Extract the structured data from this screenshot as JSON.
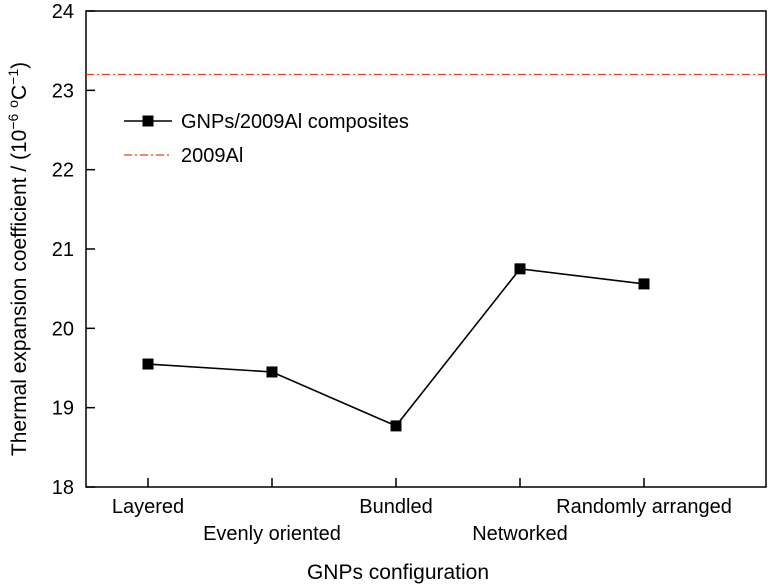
{
  "chart_data": {
    "type": "line",
    "title": "",
    "xlabel": "GNPs configuration",
    "ylabel": {
      "main": "Thermal expansion coefficient / (10",
      "exponent": "−6",
      "unit_open": " ",
      "unit_degree": "o",
      "unit_c": "C",
      "unit_exponent": "−1",
      "close": ")"
    },
    "categories": [
      "Layered",
      "Evenly oriented",
      "Bundled",
      "Networked",
      "Randomly arranged"
    ],
    "ylim": [
      18,
      24
    ],
    "yticks": [
      "18",
      "19",
      "20",
      "21",
      "22",
      "23",
      "24"
    ],
    "grid": false,
    "legend_position": "top-left",
    "series": [
      {
        "name": "GNPs/2009Al composites",
        "values": [
          19.55,
          19.45,
          18.77,
          20.75,
          20.56
        ],
        "color": "#000000",
        "marker": "square"
      }
    ],
    "reference_lines": [
      {
        "name": "2009Al",
        "value": 23.2,
        "color": "#e8401c",
        "style": "dash-dot"
      }
    ]
  }
}
